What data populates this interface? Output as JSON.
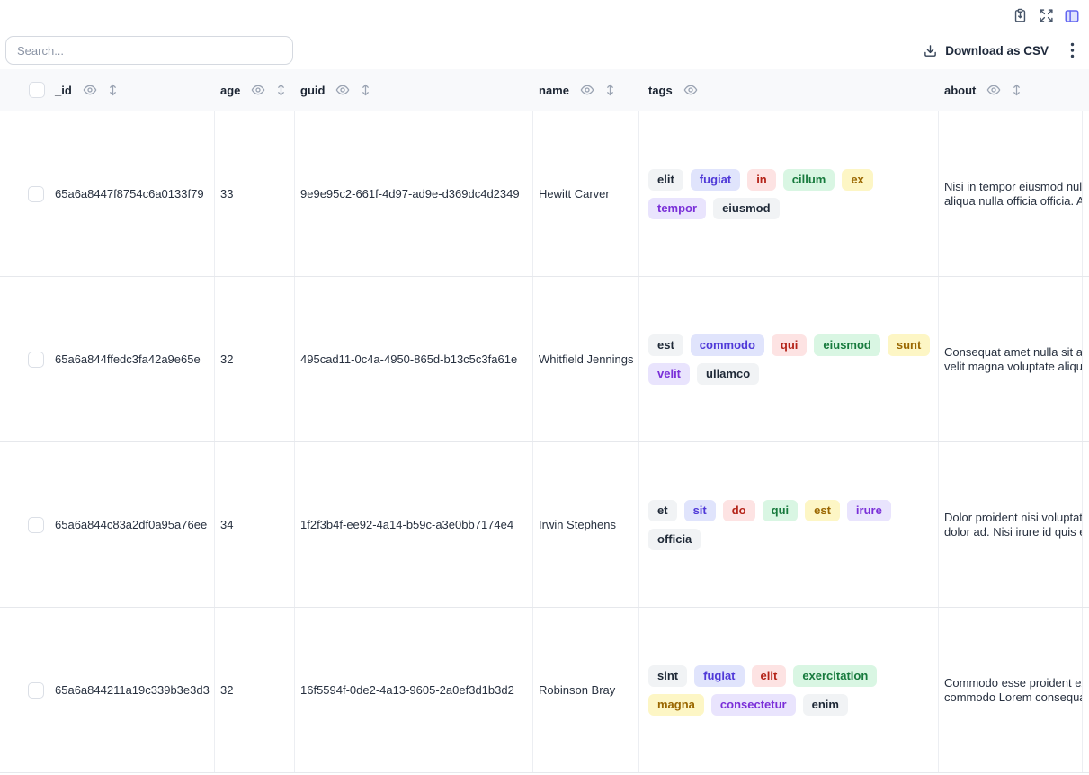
{
  "topbar": {
    "icons": [
      {
        "name": "clipboard-export-icon"
      },
      {
        "name": "expand-icon"
      },
      {
        "name": "table-view-icon",
        "active": true,
        "accent_color": "#6366f1"
      }
    ]
  },
  "controls": {
    "search_placeholder": "Search...",
    "download_csv_label": "Download as CSV"
  },
  "table": {
    "columns": [
      {
        "label": "_id",
        "sortable": true
      },
      {
        "label": "age",
        "sortable": true
      },
      {
        "label": "guid",
        "sortable": true
      },
      {
        "label": "name",
        "sortable": true
      },
      {
        "label": "tags",
        "sortable": false
      },
      {
        "label": "about",
        "sortable": true
      }
    ],
    "tag_colors": {
      "gray": {
        "bg": "#f1f3f5",
        "text": "#1f2937"
      },
      "indigo": {
        "bg": "#e0e4fc",
        "text": "#4f39d8"
      },
      "red": {
        "bg": "#fde3e3",
        "text": "#b42318"
      },
      "green": {
        "bg": "#d9f6e3",
        "text": "#177a3d"
      },
      "yellow": {
        "bg": "#fdf6c5",
        "text": "#9a6700"
      },
      "purple": {
        "bg": "#e9e4fd",
        "text": "#7a2fd8"
      }
    },
    "rows": [
      {
        "_id": "65a6a8447f8754c6a0133f79",
        "age": "33",
        "guid": "9e9e95c2-661f-4d97-ad9e-d369dc4d2349",
        "name": "Hewitt Carver",
        "tags": [
          [
            "elit",
            "gray"
          ],
          [
            "fugiat",
            "indigo"
          ],
          [
            "in",
            "red"
          ],
          [
            "cillum",
            "green"
          ],
          [
            "ex",
            "yellow"
          ],
          [
            "tempor",
            "purple"
          ],
          [
            "eiusmod",
            "gray"
          ]
        ],
        "about_line1": "Nisi in tempor eiusmod nulla",
        "about_line2": "aliqua nulla officia officia. Ad"
      },
      {
        "_id": "65a6a844ffedc3fa42a9e65e",
        "age": "32",
        "guid": "495cad11-0c4a-4950-865d-b13c5c3fa61e",
        "name": "Whitfield Jennings",
        "tags": [
          [
            "est",
            "gray"
          ],
          [
            "commodo",
            "indigo"
          ],
          [
            "qui",
            "red"
          ],
          [
            "eiusmod",
            "green"
          ],
          [
            "sunt",
            "yellow"
          ],
          [
            "velit",
            "purple"
          ],
          [
            "ullamco",
            "gray"
          ]
        ],
        "about_line1": "Consequat amet nulla sit aute",
        "about_line2": "velit magna voluptate aliquip"
      },
      {
        "_id": "65a6a844c83a2df0a95a76ee",
        "age": "34",
        "guid": "1f2f3b4f-ee92-4a14-b59c-a3e0bb7174e4",
        "name": "Irwin Stephens",
        "tags": [
          [
            "et",
            "gray"
          ],
          [
            "sit",
            "indigo"
          ],
          [
            "do",
            "red"
          ],
          [
            "qui",
            "green"
          ],
          [
            "est",
            "yellow"
          ],
          [
            "irure",
            "purple"
          ],
          [
            "officia",
            "gray"
          ]
        ],
        "about_line1": "Dolor proident nisi voluptate",
        "about_line2": "dolor ad. Nisi irure id quis ex"
      },
      {
        "_id": "65a6a844211a19c339b3e3d3",
        "age": "32",
        "guid": "16f5594f-0de2-4a13-9605-2a0ef3d1b3d2",
        "name": "Robinson Bray",
        "tags": [
          [
            "sint",
            "gray"
          ],
          [
            "fugiat",
            "indigo"
          ],
          [
            "elit",
            "red"
          ],
          [
            "exercitation",
            "green"
          ],
          [
            "magna",
            "yellow"
          ],
          [
            "consectetur",
            "purple"
          ],
          [
            "enim",
            "gray"
          ]
        ],
        "about_line1": "Commodo esse proident ex",
        "about_line2": "commodo Lorem consequat"
      }
    ]
  }
}
